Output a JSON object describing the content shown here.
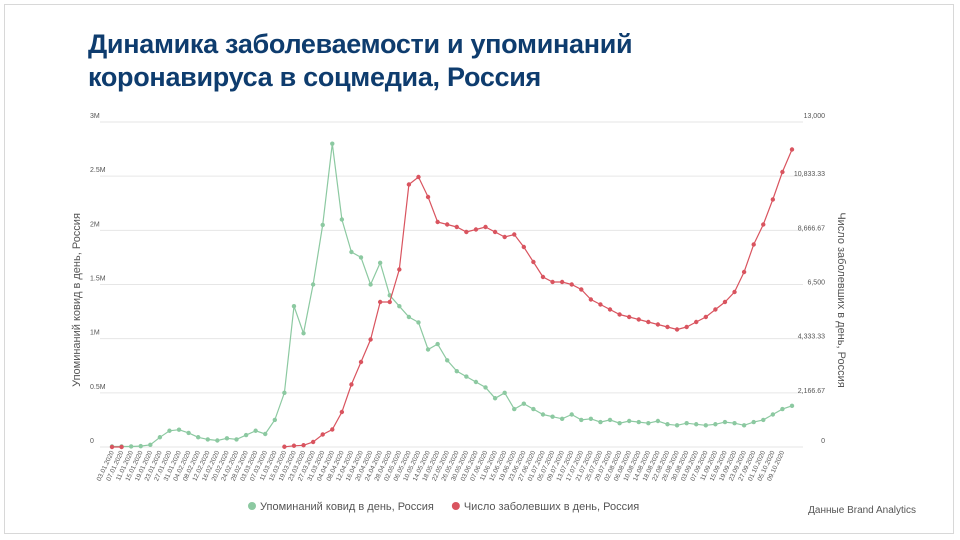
{
  "chart_data": {
    "type": "line",
    "title": "Динамика заболеваемости и упоминаний коронавируса в соцмедиа, Россия",
    "y_label": "Упоминаний ковид в день, Россия",
    "y2_label": "Число заболевших в день, Россия",
    "source": "Данные Brand Analytics",
    "grid": true,
    "legend": "bottom",
    "categories": [
      "03.01.2020",
      "07.01.2020",
      "11.01.2020",
      "15.01.2020",
      "19.01.2020",
      "23.01.2020",
      "27.01.2020",
      "31.01.2020",
      "04.02.2020",
      "08.02.2020",
      "12.02.2020",
      "16.02.2020",
      "20.02.2020",
      "24.02.2020",
      "28.02.2020",
      "03.03.2020",
      "07.03.2020",
      "11.03.2020",
      "15.03.2020",
      "19.03.2020",
      "23.03.2020",
      "27.03.2020",
      "31.03.2020",
      "04.04.2020",
      "08.04.2020",
      "12.04.2020",
      "16.04.2020",
      "20.04.2020",
      "24.04.2020",
      "28.04.2020",
      "02.05.2020",
      "06.05.2020",
      "10.05.2020",
      "14.05.2020",
      "18.05.2020",
      "22.05.2020",
      "26.05.2020",
      "30.05.2020",
      "03.06.2020",
      "07.06.2020",
      "11.06.2020",
      "15.06.2020",
      "19.06.2020",
      "23.06.2020",
      "27.06.2020",
      "01.07.2020",
      "05.07.2020",
      "09.07.2020",
      "13.07.2020",
      "17.07.2020",
      "21.07.2020",
      "25.07.2020",
      "29.07.2020",
      "02.08.2020",
      "06.08.2020",
      "10.08.2020",
      "14.08.2020",
      "18.08.2020",
      "22.08.2020",
      "26.08.2020",
      "30.08.2020",
      "03.09.2020",
      "07.09.2020",
      "11.09.2020",
      "15.09.2020",
      "19.09.2020",
      "23.09.2020",
      "27.09.2020",
      "01.10.2020",
      "05.10.2020",
      "09.10.2020",
      null
    ],
    "ylim": [
      0,
      3000000
    ],
    "yticks": [
      0,
      {
        "value": 500000,
        "label": "0.5M"
      },
      {
        "value": 1000000,
        "label": "1M"
      },
      {
        "value": 1500000,
        "label": "1.5M"
      },
      {
        "value": 2000000,
        "label": "2M"
      },
      {
        "value": 2500000,
        "label": "2.5M"
      },
      {
        "value": 3000000,
        "label": "3M"
      }
    ],
    "y2lim": [
      0,
      13000
    ],
    "y2ticks": [
      0,
      {
        "value": 2166.67,
        "label": "2,166.67"
      },
      {
        "value": 4333.33,
        "label": "4,333.33"
      },
      {
        "value": 6500,
        "label": "6,500"
      },
      {
        "value": 8666.67,
        "label": "8,666.67"
      },
      {
        "value": 10833.33,
        "label": "10,833.33"
      },
      {
        "value": 13000,
        "label": "13,000"
      }
    ],
    "series": [
      {
        "name": "Упоминаний ковид в день, Россия",
        "color": "#8cc9a1",
        "values": [
          5000,
          5000,
          5000,
          8000,
          20000,
          90000,
          150000,
          160000,
          130000,
          90000,
          70000,
          60000,
          80000,
          70000,
          110000,
          150000,
          120000,
          250000,
          500000,
          1300000,
          1050000,
          1500000,
          2050000,
          2800000,
          2100000,
          1800000,
          1750000,
          1500000,
          1700000,
          1400000,
          1300000,
          1200000,
          1150000,
          900000,
          950000,
          800000,
          700000,
          650000,
          600000,
          550000,
          450000,
          500000,
          350000,
          400000,
          350000,
          300000,
          280000,
          260000,
          300000,
          250000,
          260000,
          230000,
          250000,
          220000,
          240000,
          230000,
          220000,
          240000,
          210000,
          200000,
          220000,
          210000,
          200000,
          210000,
          230000,
          220000,
          200000,
          230000,
          250000,
          300000,
          350000,
          380000
        ]
      },
      {
        "name": "Число заболевших в день, Россия",
        "color": "#d9545f",
        "axis": "y2",
        "values": [
          0,
          0,
          null,
          null,
          null,
          null,
          null,
          null,
          null,
          null,
          null,
          null,
          null,
          null,
          null,
          null,
          null,
          null,
          10,
          50,
          70,
          200,
          500,
          700,
          1400,
          2500,
          3400,
          4300,
          5800,
          5800,
          7100,
          10500,
          10800,
          10000,
          9000,
          8900,
          8800,
          8600,
          8700,
          8800,
          8600,
          8400,
          8500,
          8000,
          7400,
          6800,
          6600,
          6600,
          6500,
          6300,
          5900,
          5700,
          5500,
          5300,
          5200,
          5100,
          5000,
          4900,
          4800,
          4700,
          4800,
          5000,
          5200,
          5500,
          5800,
          6200,
          7000,
          8100,
          8900,
          9900,
          11000,
          11900
        ]
      }
    ]
  }
}
